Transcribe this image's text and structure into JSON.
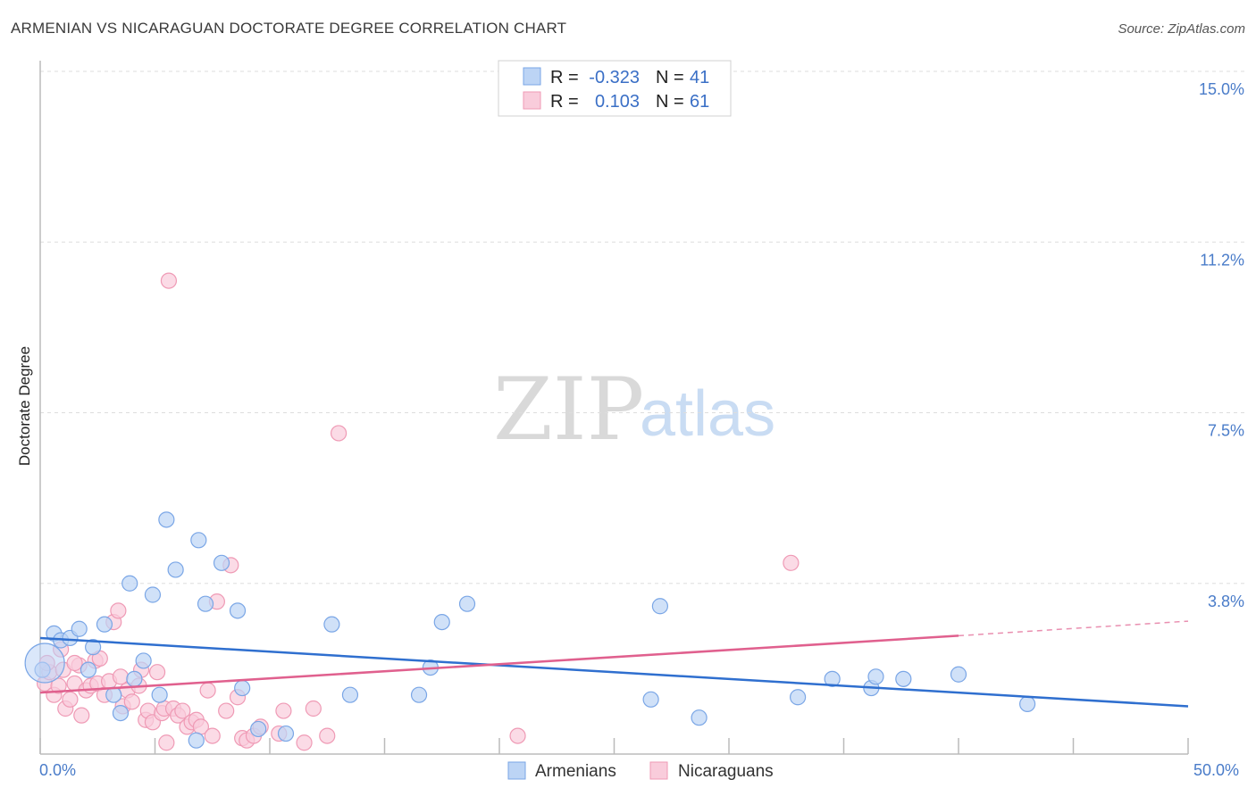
{
  "title": "ARMENIAN VS NICARAGUAN DOCTORATE DEGREE CORRELATION CHART",
  "source": "Source: ZipAtlas.com",
  "watermark": {
    "zip": "ZIP",
    "atlas": "atlas"
  },
  "chart_data": {
    "type": "scatter",
    "ylabel": "Doctorate Degree",
    "xlabel": "",
    "xlim": [
      0,
      50
    ],
    "ylim": [
      0,
      15
    ],
    "x_tick_labels": {
      "min": "0.0%",
      "max": "50.0%"
    },
    "y_ticks": [
      {
        "value": 3.75,
        "label": "3.8%"
      },
      {
        "value": 7.5,
        "label": "7.5%"
      },
      {
        "value": 11.25,
        "label": "11.2%"
      },
      {
        "value": 15.0,
        "label": "15.0%"
      }
    ],
    "legend": {
      "rows": [
        {
          "r_label": "R =",
          "r_value": "-0.323",
          "n_label": "N =",
          "n_value": "41"
        },
        {
          "r_label": "R =",
          "r_value": "0.103",
          "n_label": "N =",
          "n_value": "61"
        }
      ]
    },
    "series": [
      {
        "name": "Armenians",
        "color": "#7aa6e6",
        "fill": "#bcd4f5",
        "line_color": "#2f6fcf",
        "trend": {
          "x0": 0,
          "y0": 2.55,
          "x1": 50,
          "y1": 1.05
        },
        "points": [
          [
            0.1,
            1.85
          ],
          [
            0.6,
            2.65
          ],
          [
            0.9,
            2.5
          ],
          [
            1.3,
            2.55
          ],
          [
            1.7,
            2.75
          ],
          [
            2.1,
            1.85
          ],
          [
            2.3,
            2.35
          ],
          [
            2.8,
            2.85
          ],
          [
            3.2,
            1.3
          ],
          [
            3.5,
            0.9
          ],
          [
            3.9,
            3.75
          ],
          [
            4.1,
            1.65
          ],
          [
            4.5,
            2.05
          ],
          [
            4.9,
            3.5
          ],
          [
            5.2,
            1.3
          ],
          [
            5.5,
            5.15
          ],
          [
            5.9,
            4.05
          ],
          [
            6.8,
            0.3
          ],
          [
            6.9,
            4.7
          ],
          [
            7.2,
            3.3
          ],
          [
            7.9,
            4.2
          ],
          [
            8.6,
            3.15
          ],
          [
            8.8,
            1.45
          ],
          [
            9.5,
            0.55
          ],
          [
            10.7,
            0.45
          ],
          [
            12.7,
            2.85
          ],
          [
            13.5,
            1.3
          ],
          [
            16.5,
            1.3
          ],
          [
            17.0,
            1.9
          ],
          [
            17.5,
            2.9
          ],
          [
            18.6,
            3.3
          ],
          [
            26.6,
            1.2
          ],
          [
            27.0,
            3.25
          ],
          [
            28.7,
            0.8
          ],
          [
            33.0,
            1.25
          ],
          [
            34.5,
            1.65
          ],
          [
            36.2,
            1.45
          ],
          [
            36.4,
            1.7
          ],
          [
            37.6,
            1.65
          ],
          [
            40.0,
            1.75
          ],
          [
            43.0,
            1.1
          ]
        ],
        "big_point": [
          0.2,
          2.0
        ]
      },
      {
        "name": "Nicaraguans",
        "color": "#ef9ab5",
        "fill": "#f9ccdb",
        "line_color": "#e0608e",
        "trend": {
          "x0": 0,
          "y0": 1.35,
          "x1": 40,
          "y1": 2.6
        },
        "trend_dashed": {
          "x0": 40,
          "y0": 2.6,
          "x1": 50,
          "y1": 2.92
        },
        "points": [
          [
            0.2,
            1.55
          ],
          [
            0.4,
            1.8
          ],
          [
            0.6,
            1.3
          ],
          [
            0.8,
            1.5
          ],
          [
            1.0,
            1.85
          ],
          [
            1.1,
            1.0
          ],
          [
            1.3,
            1.2
          ],
          [
            1.5,
            1.55
          ],
          [
            1.7,
            1.95
          ],
          [
            1.8,
            0.85
          ],
          [
            2.0,
            1.4
          ],
          [
            2.2,
            1.5
          ],
          [
            2.4,
            2.05
          ],
          [
            2.5,
            1.55
          ],
          [
            2.8,
            1.3
          ],
          [
            3.0,
            1.6
          ],
          [
            3.2,
            2.9
          ],
          [
            3.4,
            3.15
          ],
          [
            3.6,
            1.05
          ],
          [
            3.8,
            1.4
          ],
          [
            4.0,
            1.15
          ],
          [
            4.3,
            1.5
          ],
          [
            4.4,
            1.85
          ],
          [
            4.6,
            0.75
          ],
          [
            4.7,
            0.95
          ],
          [
            4.9,
            0.7
          ],
          [
            5.1,
            1.8
          ],
          [
            5.3,
            0.9
          ],
          [
            5.4,
            1.0
          ],
          [
            5.5,
            0.25
          ],
          [
            5.6,
            10.4
          ],
          [
            5.8,
            1.0
          ],
          [
            6.0,
            0.85
          ],
          [
            6.2,
            0.95
          ],
          [
            6.4,
            0.6
          ],
          [
            6.6,
            0.7
          ],
          [
            6.8,
            0.75
          ],
          [
            7.0,
            0.6
          ],
          [
            7.3,
            1.4
          ],
          [
            7.5,
            0.4
          ],
          [
            7.7,
            3.35
          ],
          [
            8.1,
            0.95
          ],
          [
            8.3,
            4.15
          ],
          [
            8.6,
            1.25
          ],
          [
            8.8,
            0.35
          ],
          [
            9.0,
            0.3
          ],
          [
            9.3,
            0.4
          ],
          [
            9.6,
            0.6
          ],
          [
            10.4,
            0.45
          ],
          [
            10.6,
            0.95
          ],
          [
            11.5,
            0.25
          ],
          [
            11.9,
            1.0
          ],
          [
            12.5,
            0.4
          ],
          [
            13.0,
            7.05
          ],
          [
            20.8,
            0.4
          ],
          [
            32.7,
            4.2
          ],
          [
            0.3,
            2.0
          ],
          [
            0.9,
            2.3
          ],
          [
            1.5,
            2.0
          ],
          [
            2.6,
            2.1
          ],
          [
            3.5,
            1.7
          ]
        ]
      }
    ]
  }
}
